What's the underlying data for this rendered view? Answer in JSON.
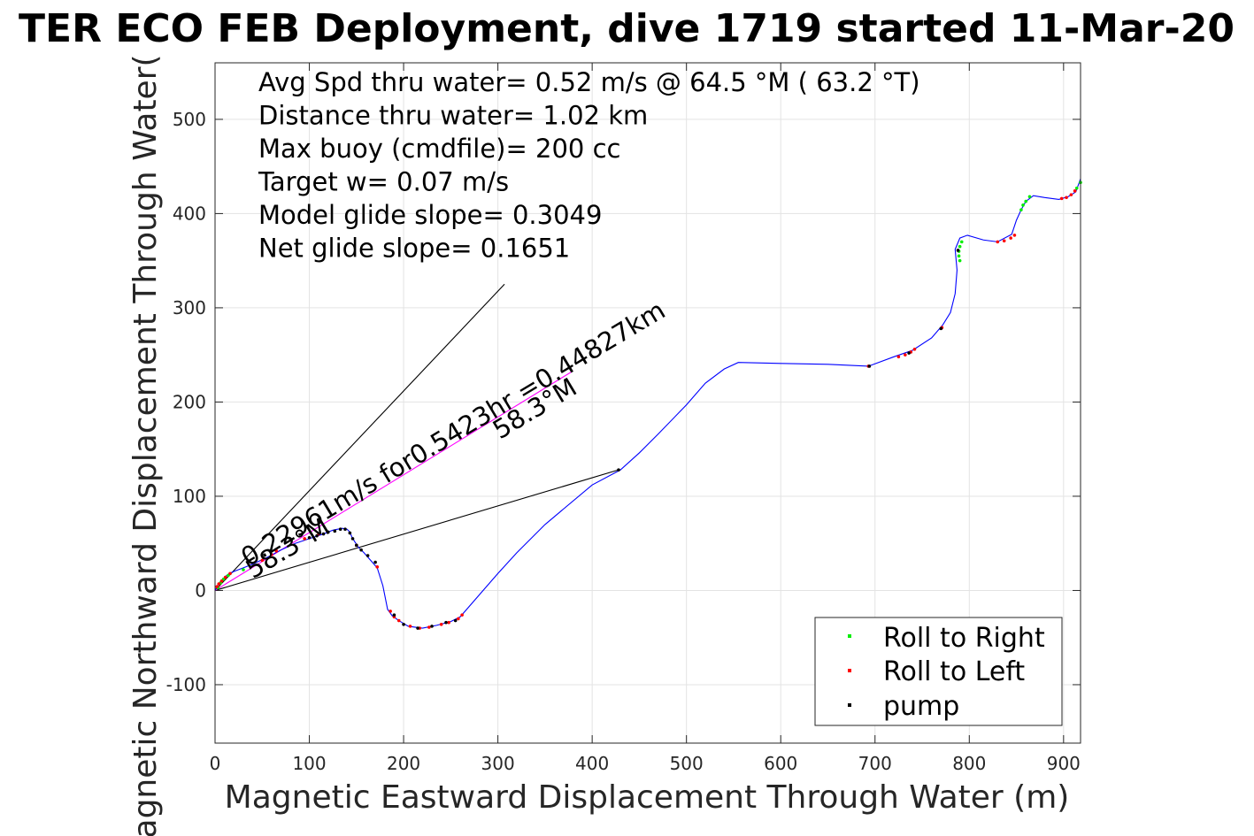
{
  "chart_data": {
    "type": "line",
    "title": "TER ECO FEB Deployment, dive 1719 started 11-Mar-20",
    "xlabel": "Magnetic Eastward Displacement Through Water (m)",
    "ylabel": "Magnetic Northward Displacement Through Water(",
    "xlim": [
      0,
      918
    ],
    "ylim": [
      -162,
      560
    ],
    "xticks": [
      0,
      100,
      200,
      300,
      400,
      500,
      600,
      700,
      800,
      900
    ],
    "yticks": [
      -100,
      0,
      100,
      200,
      300,
      400,
      500
    ],
    "grid": true,
    "annotations": [
      "Avg Spd thru water=  0.52 m/s @  64.5 °M ( 63.2 °T)",
      "Distance thru water=  1.02 km",
      "Max buoy (cmdfile)= 200 cc",
      "Target w= 0.07 m/s",
      "Model glide slope= 0.3049",
      "Net glide slope= 0.1651"
    ],
    "rotated_labels": [
      {
        "text": "0.22961m/s for0.5423hr =0.44827km",
        "x": 35,
        "y": 25,
        "angle_deg": 31
      },
      {
        "text": "58.3°M",
        "x": 302,
        "y": 160,
        "angle_deg": 31
      },
      {
        "text": "58.3°M",
        "x": 40,
        "y": 12,
        "angle_deg": 31
      }
    ],
    "legend": {
      "placement": "bottom-right",
      "entries": [
        {
          "label": "Roll to Right",
          "color": "#00ee00"
        },
        {
          "label": "Roll to Left",
          "color": "#ff0000"
        },
        {
          "label": "pump",
          "color": "#000000"
        }
      ]
    },
    "reference_lines": [
      {
        "name": "",
        "x": [
          0,
          307
        ],
        "y": [
          0,
          325
        ],
        "color": "#000000"
      },
      {
        "name": "",
        "x": [
          0,
          428
        ],
        "y": [
          0,
          128
        ],
        "color": "#000000"
      },
      {
        "name": "",
        "x": [
          0,
          378
        ],
        "y": [
          0,
          232
        ],
        "color": "#ff00ff"
      }
    ],
    "series": [
      {
        "color": "#0000ff",
        "x": [
          0,
          3,
          6,
          10,
          15,
          22,
          30,
          40,
          55,
          70,
          85,
          100,
          115,
          125,
          135,
          140,
          143,
          145,
          148,
          152,
          158,
          165,
          172,
          178,
          183,
          188,
          195,
          205,
          220,
          235,
          250,
          260,
          280,
          300,
          320,
          335,
          350,
          400,
          430,
          450,
          470,
          500,
          520,
          540,
          555,
          600,
          650,
          693,
          720,
          740,
          760,
          772,
          780,
          785,
          787,
          785,
          790,
          798,
          815,
          830,
          845,
          850,
          855,
          860,
          868,
          880,
          895,
          905,
          913,
          918
        ],
        "y": [
          0,
          6,
          10,
          14,
          18,
          21,
          24,
          28,
          35,
          43,
          50,
          55,
          60,
          64,
          66,
          65,
          62,
          57,
          52,
          46,
          40,
          32,
          24,
          5,
          -20,
          -27,
          -32,
          -38,
          -40,
          -37,
          -33,
          -28,
          -5,
          18,
          40,
          55,
          70,
          112,
          128,
          146,
          166,
          197,
          220,
          235,
          242,
          241,
          240,
          238,
          248,
          255,
          268,
          282,
          295,
          315,
          340,
          362,
          374,
          377,
          372,
          370,
          378,
          393,
          404,
          413,
          419,
          417,
          415,
          418,
          423,
          437
        ]
      }
    ],
    "markers": {
      "right": [
        [
          3,
          3
        ],
        [
          6,
          8
        ],
        [
          9,
          12
        ],
        [
          14,
          16
        ],
        [
          30,
          22
        ],
        [
          792,
          370
        ],
        [
          790,
          365
        ],
        [
          789,
          360
        ],
        [
          789,
          355
        ],
        [
          790,
          350
        ],
        [
          855,
          404
        ],
        [
          857,
          409
        ],
        [
          860,
          413
        ],
        [
          864,
          418
        ],
        [
          914,
          427
        ],
        [
          918,
          433
        ]
      ],
      "left": [
        [
          2,
          4
        ],
        [
          4,
          7
        ],
        [
          7,
          10
        ],
        [
          11,
          14
        ],
        [
          16,
          18
        ],
        [
          50,
          32
        ],
        [
          60,
          38
        ],
        [
          65,
          42
        ],
        [
          95,
          55
        ],
        [
          110,
          60
        ],
        [
          150,
          48
        ],
        [
          172,
          25
        ],
        [
          186,
          -22
        ],
        [
          190,
          -28
        ],
        [
          195,
          -32
        ],
        [
          207,
          -38
        ],
        [
          217,
          -40
        ],
        [
          227,
          -39
        ],
        [
          240,
          -36
        ],
        [
          248,
          -34
        ],
        [
          258,
          -30
        ],
        [
          262,
          -26
        ],
        [
          693,
          238
        ],
        [
          725,
          248
        ],
        [
          732,
          250
        ],
        [
          738,
          253
        ],
        [
          742,
          256
        ],
        [
          771,
          279
        ],
        [
          830,
          370
        ],
        [
          837,
          371
        ],
        [
          844,
          374
        ],
        [
          848,
          377
        ],
        [
          898,
          416
        ],
        [
          903,
          417
        ],
        [
          908,
          420
        ],
        [
          912,
          424
        ]
      ],
      "pump": [
        [
          100,
          56
        ],
        [
          108,
          58
        ],
        [
          115,
          60
        ],
        [
          120,
          62
        ],
        [
          127,
          63
        ],
        [
          133,
          65
        ],
        [
          138,
          65
        ],
        [
          143,
          61
        ],
        [
          146,
          55
        ],
        [
          150,
          48
        ],
        [
          155,
          43
        ],
        [
          162,
          37
        ],
        [
          170,
          30
        ],
        [
          190,
          -26
        ],
        [
          200,
          -36
        ],
        [
          215,
          -40
        ],
        [
          230,
          -38
        ],
        [
          245,
          -34
        ],
        [
          255,
          -32
        ],
        [
          428,
          128
        ],
        [
          694,
          238
        ],
        [
          736,
          252
        ],
        [
          770,
          278
        ],
        [
          788,
          361
        ]
      ]
    }
  }
}
